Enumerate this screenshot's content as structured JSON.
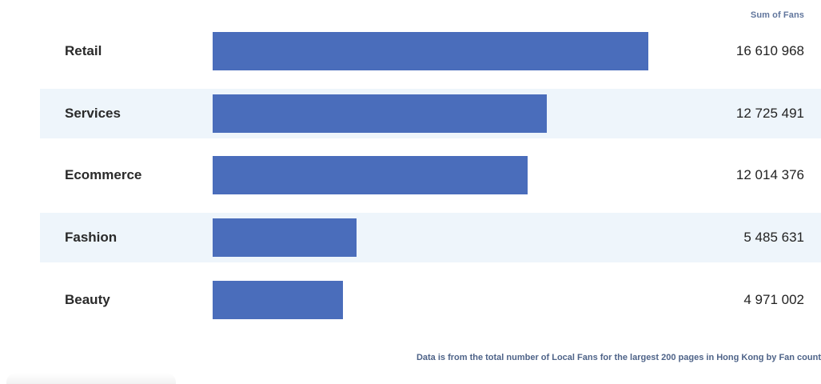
{
  "chart_data": {
    "type": "bar",
    "orientation": "horizontal",
    "value_column_header": "Sum of Fans",
    "categories": [
      "Retail",
      "Services",
      "Ecommerce",
      "Fashion",
      "Beauty"
    ],
    "values": [
      16610968,
      12725491,
      12014376,
      5485631,
      4971002
    ],
    "value_labels": [
      "16 610 968",
      "12 725 491",
      "12 014 376",
      "5 485 631",
      "4 971 002"
    ],
    "bar_color": "#4a6dbb",
    "stripe_color": "#eef5fb",
    "grid": false,
    "footnote": "Data is from the total number of Local Fans for the largest 200 pages in Hong Kong by Fan count"
  }
}
